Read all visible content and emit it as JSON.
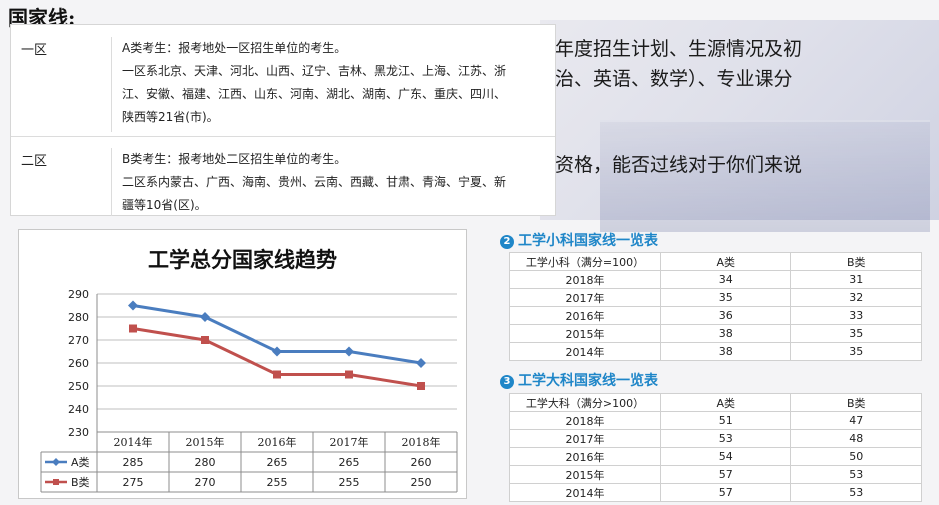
{
  "page_title": "国家线:",
  "paragraph_lines": [
    "年度招生计划、生源情况及初",
    "治、英语、数学）、专业课分",
    "资格，能否过线对于你们来说"
  ],
  "region_table": [
    {
      "name": "一区",
      "lines": [
        "A类考生：报考地处一区招生单位的考生。",
        "一区系北京、天津、河北、山西、辽宁、吉林、黑龙江、上海、江苏、浙",
        "江、安徽、福建、江西、山东、河南、湖北、湖南、广东、重庆、四川、",
        "陕西等21省(市)。"
      ]
    },
    {
      "name": "二区",
      "lines": [
        "B类考生：报考地处二区招生单位的考生。",
        "二区系内蒙古、广西、海南、贵州、云南、西藏、甘肃、青海、宁夏、新",
        "疆等10省(区)。"
      ]
    }
  ],
  "chart_data": {
    "type": "line",
    "title": "工学总分国家线趋势",
    "categories": [
      "2014年",
      "2015年",
      "2016年",
      "2017年",
      "2018年"
    ],
    "series": [
      {
        "name": "A类",
        "values": [
          285,
          280,
          265,
          265,
          260
        ],
        "color": "#4a7dbf"
      },
      {
        "name": "B类",
        "values": [
          275,
          270,
          255,
          255,
          250
        ],
        "color": "#c0504d"
      }
    ],
    "yticks": [
      290,
      280,
      270,
      260,
      250,
      240,
      230
    ],
    "ylim": [
      230,
      290
    ],
    "grid": true,
    "legend": "data-table-below"
  },
  "small_table": {
    "num": "2",
    "title": "工学小科国家线一览表",
    "headers": [
      "工学小科（满分=100）",
      "A类",
      "B类"
    ],
    "rows": [
      [
        "2018年",
        "34",
        "31"
      ],
      [
        "2017年",
        "35",
        "32"
      ],
      [
        "2016年",
        "36",
        "33"
      ],
      [
        "2015年",
        "38",
        "35"
      ],
      [
        "2014年",
        "38",
        "35"
      ]
    ]
  },
  "big_table": {
    "num": "3",
    "title": "工学大科国家线一览表",
    "headers": [
      "工学大科（满分>100）",
      "A类",
      "B类"
    ],
    "rows": [
      [
        "2018年",
        "51",
        "47"
      ],
      [
        "2017年",
        "53",
        "48"
      ],
      [
        "2016年",
        "54",
        "50"
      ],
      [
        "2015年",
        "57",
        "53"
      ],
      [
        "2014年",
        "57",
        "53"
      ]
    ]
  }
}
